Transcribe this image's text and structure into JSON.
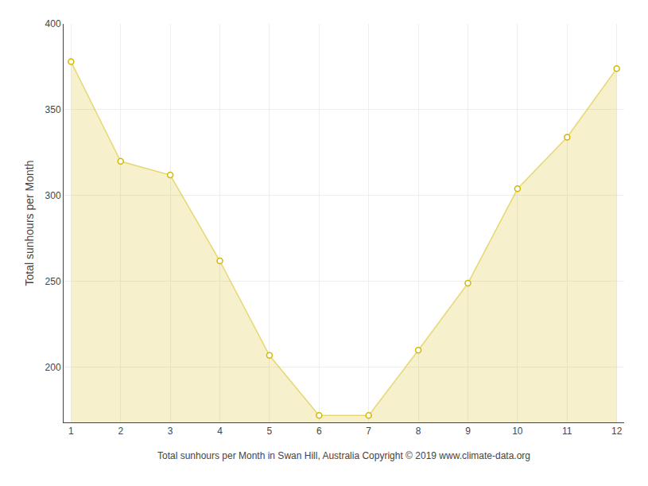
{
  "chart_data": {
    "type": "area",
    "xlabel": "Total sunhours per Month in Swan Hill, Australia Copyright © 2019 www.climate-data.org",
    "ylabel": "Total sunhours per Month",
    "x": [
      1,
      2,
      3,
      4,
      5,
      6,
      7,
      8,
      9,
      10,
      11,
      12
    ],
    "values": [
      378,
      320,
      312,
      262,
      207,
      172,
      172,
      210,
      249,
      304,
      334,
      374
    ],
    "color": "#d4b800",
    "marker": "circle",
    "xlim": [
      0.85,
      12.15
    ],
    "xticks": [
      1,
      2,
      3,
      4,
      5,
      6,
      7,
      8,
      9,
      10,
      11,
      12
    ],
    "ylim": [
      168,
      400
    ],
    "yticks": [
      200,
      250,
      300,
      350,
      400
    ],
    "grid": true
  }
}
